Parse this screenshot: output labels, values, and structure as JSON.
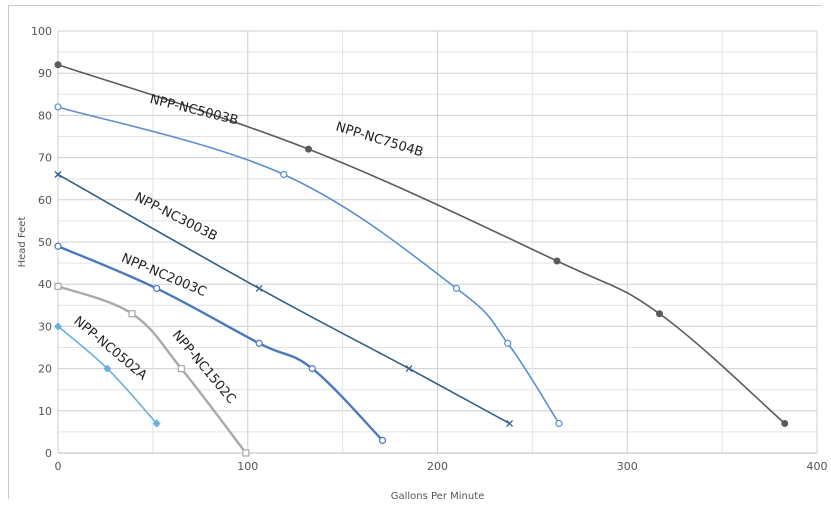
{
  "chart_data": {
    "type": "line",
    "title": "",
    "xlabel": "Gallons Per Minute",
    "ylabel": "Head Feet",
    "xlim": [
      0,
      400
    ],
    "ylim": [
      0,
      100
    ],
    "x_ticks": [
      0,
      100,
      200,
      300,
      400
    ],
    "y_ticks": [
      0,
      10,
      20,
      30,
      40,
      50,
      60,
      70,
      80,
      90,
      100
    ],
    "grid": true,
    "legend": "none",
    "series": [
      {
        "name": "NPP-NC7504B",
        "color": "#5b5b5b",
        "marker": "filled-circle",
        "points": [
          [
            0,
            92
          ],
          [
            132,
            72
          ],
          [
            263,
            45.5
          ],
          [
            317,
            33
          ],
          [
            383,
            7
          ]
        ]
      },
      {
        "name": "NPP-NC5003B",
        "color": "#5b8fd0",
        "marker": "open-circle",
        "points": [
          [
            0,
            82
          ],
          [
            119,
            66
          ],
          [
            210,
            39
          ],
          [
            237,
            26
          ],
          [
            264,
            7
          ]
        ]
      },
      {
        "name": "NPP-NC3003B",
        "color": "#2f5f8c",
        "marker": "x",
        "points": [
          [
            0,
            66
          ],
          [
            106,
            39
          ],
          [
            185,
            20
          ],
          [
            238,
            7
          ]
        ]
      },
      {
        "name": "NPP-NC2003C",
        "color": "#4a78c0",
        "marker": "open-circle",
        "points": [
          [
            0,
            49
          ],
          [
            52,
            39
          ],
          [
            106,
            26
          ],
          [
            134,
            20
          ],
          [
            171,
            3
          ]
        ]
      },
      {
        "name": "NPP-NC1502C",
        "color": "#a9a9a9",
        "marker": "open-square",
        "points": [
          [
            0,
            39.5
          ],
          [
            39,
            33
          ],
          [
            65,
            20
          ],
          [
            99,
            0
          ]
        ]
      },
      {
        "name": "NPP-NC0502A",
        "color": "#6aaee0",
        "marker": "filled-diamond",
        "points": [
          [
            0,
            30
          ],
          [
            26,
            20
          ],
          [
            52,
            7
          ]
        ]
      }
    ]
  }
}
